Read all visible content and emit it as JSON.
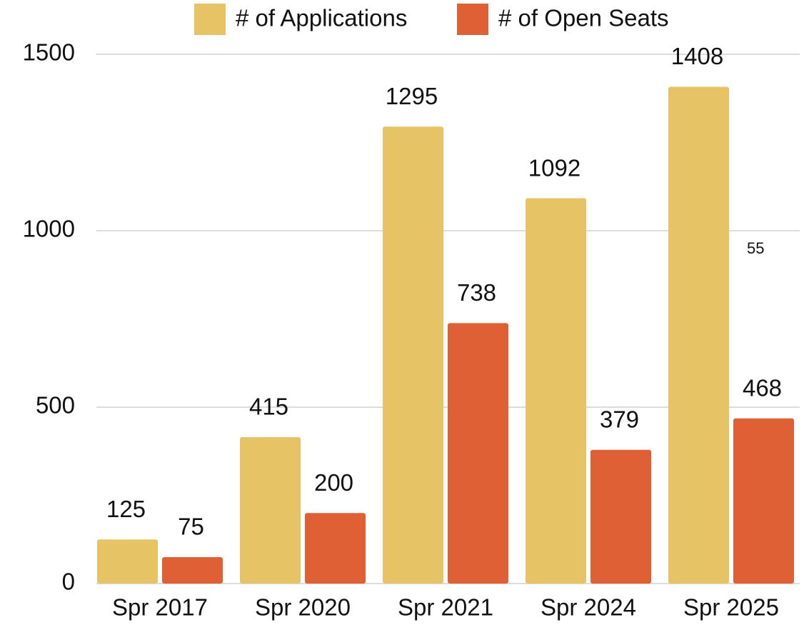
{
  "chart_data": {
    "type": "bar",
    "categories": [
      "Spr 2017",
      "Spr 2020",
      "Spr 2021",
      "Spr 2024",
      "Spr 2025"
    ],
    "series": [
      {
        "name": "# of Applications",
        "color": "#e6c365",
        "values": [
          125,
          415,
          1295,
          1092,
          1408
        ]
      },
      {
        "name": "# of Open Seats",
        "color": "#de6034",
        "values": [
          75,
          200,
          738,
          379,
          468
        ]
      }
    ],
    "annotations": [
      "55"
    ],
    "ylim": [
      0,
      1500
    ],
    "yticks": [
      0,
      500,
      1000,
      1500
    ],
    "grid": true,
    "legend": "top"
  }
}
